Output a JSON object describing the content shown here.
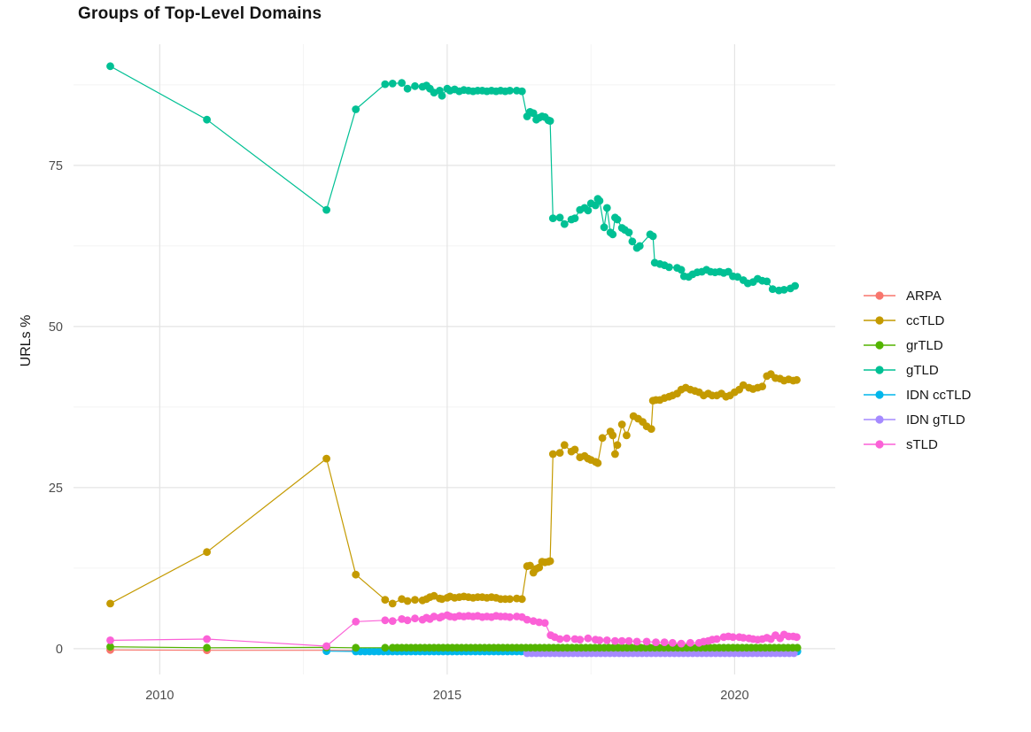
{
  "title": "Groups of Top-Level Domains",
  "chart_data": {
    "type": "line",
    "title": "Groups of Top-Level Domains",
    "xlabel": "",
    "ylabel": "URLs %",
    "x_ticks": [
      2010,
      2015,
      2020
    ],
    "x_minor_ticks": [
      2012.5,
      2017.5
    ],
    "y_ticks": [
      0,
      25,
      50,
      75
    ],
    "y_minor_ticks": [
      12.5,
      37.5,
      62.5,
      87.5
    ],
    "xlim": [
      2008.5,
      2021.75
    ],
    "ylim": [
      -4,
      93.8
    ],
    "grid": "major+minor",
    "legend_position": "right",
    "series": [
      {
        "name": "ARPA",
        "color": "#F8766D",
        "points": [
          [
            2009.14,
            0.15
          ],
          [
            2010.82,
            0.1
          ],
          [
            2012.9,
            0.1
          ],
          [
            2013.41,
            0.05
          ]
        ]
      },
      {
        "name": "ccTLD",
        "color": "#C49A00",
        "points": [
          [
            2009.14,
            7.0
          ],
          [
            2010.82,
            15.0
          ],
          [
            2012.9,
            29.5
          ],
          [
            2013.41,
            11.5
          ],
          [
            2013.92,
            7.6
          ],
          [
            2014.05,
            7.0
          ],
          [
            2014.21,
            7.7
          ],
          [
            2014.31,
            7.4
          ],
          [
            2014.44,
            7.6
          ],
          [
            2014.57,
            7.5
          ],
          [
            2014.64,
            7.7
          ],
          [
            2014.7,
            8.0
          ],
          [
            2014.77,
            8.2
          ],
          [
            2014.87,
            7.8
          ],
          [
            2014.91,
            7.7
          ],
          [
            2015.0,
            7.9
          ],
          [
            2015.05,
            8.1
          ],
          [
            2015.13,
            7.9
          ],
          [
            2015.21,
            8.0
          ],
          [
            2015.29,
            8.1
          ],
          [
            2015.37,
            8.0
          ],
          [
            2015.45,
            7.9
          ],
          [
            2015.53,
            8.0
          ],
          [
            2015.61,
            8.0
          ],
          [
            2015.69,
            7.9
          ],
          [
            2015.77,
            8.0
          ],
          [
            2015.85,
            7.9
          ],
          [
            2015.93,
            7.7
          ],
          [
            2016.01,
            7.7
          ],
          [
            2016.09,
            7.7
          ],
          [
            2016.21,
            7.8
          ],
          [
            2016.3,
            7.7
          ],
          [
            2016.39,
            12.8
          ],
          [
            2016.44,
            12.9
          ],
          [
            2016.5,
            11.8
          ],
          [
            2016.55,
            12.4
          ],
          [
            2016.6,
            12.6
          ],
          [
            2016.65,
            13.5
          ],
          [
            2016.7,
            13.4
          ],
          [
            2016.76,
            13.5
          ],
          [
            2016.79,
            13.6
          ],
          [
            2016.84,
            30.2
          ],
          [
            2016.96,
            30.4
          ],
          [
            2017.04,
            31.6
          ],
          [
            2017.16,
            30.6
          ],
          [
            2017.22,
            30.9
          ],
          [
            2017.31,
            29.7
          ],
          [
            2017.39,
            29.9
          ],
          [
            2017.45,
            29.5
          ],
          [
            2017.5,
            29.3
          ],
          [
            2017.58,
            29.0
          ],
          [
            2017.62,
            28.8
          ],
          [
            2017.7,
            32.7
          ],
          [
            2017.84,
            33.7
          ],
          [
            2017.88,
            33.1
          ],
          [
            2017.92,
            30.2
          ],
          [
            2017.96,
            31.6
          ],
          [
            2018.04,
            34.8
          ],
          [
            2018.12,
            33.1
          ],
          [
            2018.24,
            36.1
          ],
          [
            2018.32,
            35.7
          ],
          [
            2018.4,
            35.2
          ],
          [
            2018.47,
            34.5
          ],
          [
            2018.55,
            34.1
          ],
          [
            2018.58,
            38.5
          ],
          [
            2018.63,
            38.6
          ],
          [
            2018.7,
            38.6
          ],
          [
            2018.78,
            38.9
          ],
          [
            2018.86,
            39.1
          ],
          [
            2018.92,
            39.3
          ],
          [
            2019.0,
            39.6
          ],
          [
            2019.07,
            40.2
          ],
          [
            2019.15,
            40.5
          ],
          [
            2019.23,
            40.2
          ],
          [
            2019.31,
            40.0
          ],
          [
            2019.38,
            39.8
          ],
          [
            2019.46,
            39.3
          ],
          [
            2019.54,
            39.6
          ],
          [
            2019.61,
            39.3
          ],
          [
            2019.69,
            39.3
          ],
          [
            2019.77,
            39.6
          ],
          [
            2019.85,
            39.1
          ],
          [
            2019.92,
            39.3
          ],
          [
            2020.0,
            39.8
          ],
          [
            2020.08,
            40.2
          ],
          [
            2020.15,
            40.9
          ],
          [
            2020.25,
            40.5
          ],
          [
            2020.32,
            40.3
          ],
          [
            2020.4,
            40.5
          ],
          [
            2020.48,
            40.7
          ],
          [
            2020.56,
            42.3
          ],
          [
            2020.63,
            42.6
          ],
          [
            2020.71,
            42.0
          ],
          [
            2020.79,
            41.9
          ],
          [
            2020.86,
            41.6
          ],
          [
            2020.94,
            41.8
          ],
          [
            2021.02,
            41.6
          ],
          [
            2021.08,
            41.7
          ]
        ]
      },
      {
        "name": "grTLD",
        "color": "#53B400",
        "points": [
          [
            2009.14,
            0.3
          ],
          [
            2010.82,
            0.15
          ],
          [
            2012.9,
            0.2
          ],
          [
            2013.41,
            0.15
          ],
          [
            2013.92,
            0.15
          ]
        ],
        "run": {
          "start": 2014.05,
          "end": 2021.15,
          "step": 0.08,
          "value": 0.15
        }
      },
      {
        "name": "gTLD",
        "color": "#00C094",
        "points": [
          [
            2009.14,
            90.4
          ],
          [
            2010.82,
            82.1
          ],
          [
            2012.9,
            68.1
          ],
          [
            2013.41,
            83.7
          ],
          [
            2013.92,
            87.6
          ],
          [
            2014.05,
            87.7
          ],
          [
            2014.21,
            87.8
          ],
          [
            2014.31,
            86.9
          ],
          [
            2014.44,
            87.3
          ],
          [
            2014.57,
            87.2
          ],
          [
            2014.64,
            87.4
          ],
          [
            2014.7,
            86.9
          ],
          [
            2014.77,
            86.3
          ],
          [
            2014.87,
            86.6
          ],
          [
            2014.91,
            85.8
          ],
          [
            2015.0,
            86.9
          ],
          [
            2015.05,
            86.6
          ],
          [
            2015.13,
            86.8
          ],
          [
            2015.21,
            86.5
          ],
          [
            2015.29,
            86.7
          ],
          [
            2015.37,
            86.6
          ],
          [
            2015.45,
            86.5
          ],
          [
            2015.53,
            86.6
          ],
          [
            2015.61,
            86.6
          ],
          [
            2015.69,
            86.5
          ],
          [
            2015.77,
            86.6
          ],
          [
            2015.85,
            86.5
          ],
          [
            2015.93,
            86.6
          ],
          [
            2016.01,
            86.5
          ],
          [
            2016.09,
            86.6
          ],
          [
            2016.21,
            86.6
          ],
          [
            2016.3,
            86.5
          ],
          [
            2016.39,
            82.6
          ],
          [
            2016.44,
            83.3
          ],
          [
            2016.5,
            83.1
          ],
          [
            2016.55,
            82.1
          ],
          [
            2016.6,
            82.4
          ],
          [
            2016.65,
            82.6
          ],
          [
            2016.7,
            82.5
          ],
          [
            2016.76,
            82.0
          ],
          [
            2016.79,
            81.9
          ],
          [
            2016.84,
            66.8
          ],
          [
            2016.96,
            66.9
          ],
          [
            2017.04,
            65.9
          ],
          [
            2017.16,
            66.6
          ],
          [
            2017.22,
            66.8
          ],
          [
            2017.31,
            68.1
          ],
          [
            2017.39,
            68.4
          ],
          [
            2017.45,
            68.0
          ],
          [
            2017.5,
            69.1
          ],
          [
            2017.58,
            68.8
          ],
          [
            2017.62,
            69.8
          ],
          [
            2017.65,
            69.5
          ],
          [
            2017.73,
            65.4
          ],
          [
            2017.78,
            68.4
          ],
          [
            2017.84,
            64.6
          ],
          [
            2017.88,
            64.3
          ],
          [
            2017.92,
            66.9
          ],
          [
            2017.96,
            66.6
          ],
          [
            2018.04,
            65.3
          ],
          [
            2018.09,
            65.0
          ],
          [
            2018.16,
            64.6
          ],
          [
            2018.22,
            63.2
          ],
          [
            2018.3,
            62.2
          ],
          [
            2018.35,
            62.5
          ],
          [
            2018.53,
            64.3
          ],
          [
            2018.58,
            64.0
          ],
          [
            2018.61,
            59.9
          ],
          [
            2018.7,
            59.7
          ],
          [
            2018.78,
            59.5
          ],
          [
            2018.86,
            59.2
          ],
          [
            2019.0,
            59.1
          ],
          [
            2019.07,
            58.8
          ],
          [
            2019.12,
            57.8
          ],
          [
            2019.2,
            57.7
          ],
          [
            2019.27,
            58.1
          ],
          [
            2019.35,
            58.4
          ],
          [
            2019.43,
            58.5
          ],
          [
            2019.51,
            58.8
          ],
          [
            2019.58,
            58.5
          ],
          [
            2019.66,
            58.4
          ],
          [
            2019.74,
            58.5
          ],
          [
            2019.81,
            58.3
          ],
          [
            2019.89,
            58.5
          ],
          [
            2019.97,
            57.8
          ],
          [
            2020.05,
            57.7
          ],
          [
            2020.15,
            57.2
          ],
          [
            2020.23,
            56.7
          ],
          [
            2020.32,
            56.9
          ],
          [
            2020.4,
            57.4
          ],
          [
            2020.48,
            57.1
          ],
          [
            2020.56,
            57.0
          ],
          [
            2020.66,
            55.8
          ],
          [
            2020.77,
            55.6
          ],
          [
            2020.86,
            55.7
          ],
          [
            2020.97,
            55.9
          ],
          [
            2021.05,
            56.3
          ]
        ]
      },
      {
        "name": "IDN ccTLD",
        "color": "#00B6EB",
        "points": [
          [
            2012.9,
            0.1
          ]
        ],
        "run": {
          "start": 2013.41,
          "end": 2021.1,
          "step": 0.08,
          "value": 0.05
        }
      },
      {
        "name": "IDN gTLD",
        "color": "#A58AFF",
        "points": [],
        "run": {
          "start": 2016.39,
          "end": 2021.1,
          "step": 0.08,
          "value": 0.05
        }
      },
      {
        "name": "sTLD",
        "color": "#FB61D7",
        "points": [
          [
            2009.14,
            1.3
          ],
          [
            2010.82,
            1.5
          ],
          [
            2012.9,
            0.4
          ],
          [
            2013.41,
            4.2
          ],
          [
            2013.92,
            4.4
          ],
          [
            2014.05,
            4.3
          ],
          [
            2014.21,
            4.6
          ],
          [
            2014.31,
            4.4
          ],
          [
            2014.44,
            4.7
          ],
          [
            2014.57,
            4.5
          ],
          [
            2014.64,
            4.8
          ],
          [
            2014.7,
            4.6
          ],
          [
            2014.77,
            5.0
          ],
          [
            2014.87,
            4.8
          ],
          [
            2014.91,
            5.0
          ],
          [
            2015.0,
            5.2
          ],
          [
            2015.05,
            5.0
          ],
          [
            2015.13,
            4.9
          ],
          [
            2015.21,
            5.1
          ],
          [
            2015.29,
            5.0
          ],
          [
            2015.37,
            5.1
          ],
          [
            2015.45,
            5.0
          ],
          [
            2015.53,
            5.1
          ],
          [
            2015.61,
            4.9
          ],
          [
            2015.69,
            5.0
          ],
          [
            2015.77,
            4.9
          ],
          [
            2015.85,
            5.1
          ],
          [
            2015.93,
            5.0
          ],
          [
            2016.01,
            5.0
          ],
          [
            2016.09,
            4.9
          ],
          [
            2016.21,
            5.0
          ],
          [
            2016.3,
            4.9
          ],
          [
            2016.39,
            4.5
          ],
          [
            2016.5,
            4.3
          ],
          [
            2016.6,
            4.1
          ],
          [
            2016.7,
            4.0
          ],
          [
            2016.8,
            2.1
          ],
          [
            2016.87,
            1.8
          ],
          [
            2016.96,
            1.5
          ],
          [
            2017.08,
            1.6
          ],
          [
            2017.22,
            1.5
          ],
          [
            2017.31,
            1.4
          ],
          [
            2017.45,
            1.6
          ],
          [
            2017.58,
            1.4
          ],
          [
            2017.65,
            1.3
          ],
          [
            2017.78,
            1.3
          ],
          [
            2017.92,
            1.2
          ],
          [
            2018.04,
            1.2
          ],
          [
            2018.16,
            1.2
          ],
          [
            2018.3,
            1.1
          ],
          [
            2018.47,
            1.1
          ],
          [
            2018.63,
            1.0
          ],
          [
            2018.78,
            1.0
          ],
          [
            2018.92,
            0.9
          ],
          [
            2019.07,
            0.8
          ],
          [
            2019.23,
            0.9
          ],
          [
            2019.38,
            0.9
          ],
          [
            2019.46,
            1.1
          ],
          [
            2019.54,
            1.2
          ],
          [
            2019.61,
            1.4
          ],
          [
            2019.69,
            1.5
          ],
          [
            2019.81,
            1.8
          ],
          [
            2019.89,
            1.9
          ],
          [
            2019.97,
            1.8
          ],
          [
            2020.08,
            1.8
          ],
          [
            2020.15,
            1.7
          ],
          [
            2020.25,
            1.6
          ],
          [
            2020.32,
            1.5
          ],
          [
            2020.4,
            1.4
          ],
          [
            2020.48,
            1.5
          ],
          [
            2020.56,
            1.7
          ],
          [
            2020.63,
            1.5
          ],
          [
            2020.71,
            2.1
          ],
          [
            2020.79,
            1.6
          ],
          [
            2020.86,
            2.2
          ],
          [
            2020.94,
            1.9
          ],
          [
            2021.02,
            1.9
          ],
          [
            2021.08,
            1.8
          ]
        ]
      }
    ],
    "colors": {
      "grid_major": "#E4E4E4",
      "grid_minor": "#EFEFEF",
      "tick_label": "#4d4d4d",
      "text": "#141414"
    }
  }
}
